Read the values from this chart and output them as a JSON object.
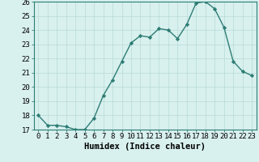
{
  "xlabel": "Humidex (Indice chaleur)",
  "x": [
    0,
    1,
    2,
    3,
    4,
    5,
    6,
    7,
    8,
    9,
    10,
    11,
    12,
    13,
    14,
    15,
    16,
    17,
    18,
    19,
    20,
    21,
    22,
    23
  ],
  "y": [
    18.0,
    17.3,
    17.3,
    17.2,
    17.0,
    17.0,
    17.8,
    19.4,
    20.5,
    21.8,
    23.1,
    23.6,
    23.5,
    24.1,
    24.0,
    23.4,
    24.4,
    25.9,
    26.0,
    25.5,
    24.2,
    21.8,
    21.1,
    20.8
  ],
  "line_color": "#2d7d74",
  "marker": "D",
  "marker_size": 2.2,
  "bg_color": "#d8f0ee",
  "grid_color": "#b8dbd8",
  "ylim": [
    17,
    26
  ],
  "yticks": [
    17,
    18,
    19,
    20,
    21,
    22,
    23,
    24,
    25,
    26
  ],
  "xticks": [
    0,
    1,
    2,
    3,
    4,
    5,
    6,
    7,
    8,
    9,
    10,
    11,
    12,
    13,
    14,
    15,
    16,
    17,
    18,
    19,
    20,
    21,
    22,
    23
  ],
  "xlabel_fontsize": 7.5,
  "tick_fontsize": 6.5,
  "line_width": 1.0
}
